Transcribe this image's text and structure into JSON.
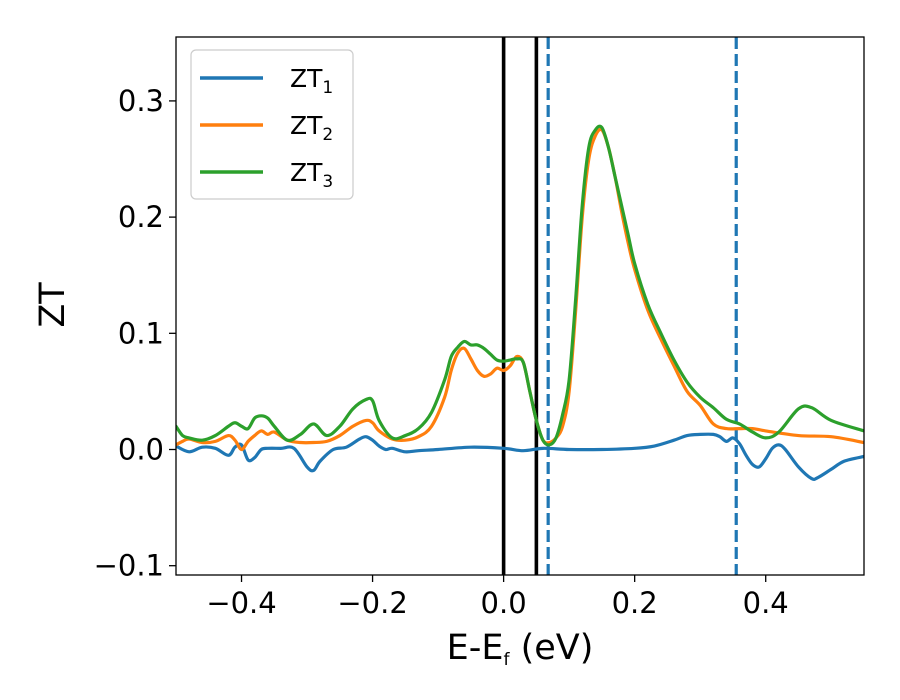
{
  "chart_data": {
    "type": "line",
    "xlabel": "E-E",
    "xlabel_sub": "f",
    "xlabel_unit": " (eV)",
    "ylabel": "ZT",
    "xlim": [
      -0.5,
      0.55
    ],
    "ylim": [
      -0.108,
      0.355
    ],
    "xticks": [
      -0.4,
      -0.2,
      0.0,
      0.2,
      0.4
    ],
    "xtick_labels": [
      "−0.4",
      "−0.2",
      "0.0",
      "0.2",
      "0.4"
    ],
    "yticks": [
      -0.1,
      0.0,
      0.1,
      0.2,
      0.3
    ],
    "ytick_labels": [
      "−0.1",
      "0.0",
      "0.1",
      "0.2",
      "0.3"
    ],
    "grid": false,
    "legend_position": "top-left",
    "vertical_lines": [
      {
        "x": 0.0,
        "color": "#000000",
        "style": "solid"
      },
      {
        "x": 0.05,
        "color": "#000000",
        "style": "solid"
      },
      {
        "x": 0.068,
        "color": "#1f77b4",
        "style": "dashed"
      },
      {
        "x": 0.355,
        "color": "#1f77b4",
        "style": "dashed"
      }
    ],
    "series": [
      {
        "name": "ZT",
        "name_sub": "1",
        "color": "#1f77b4",
        "x": [
          -0.5,
          -0.48,
          -0.46,
          -0.44,
          -0.42,
          -0.41,
          -0.4,
          -0.39,
          -0.38,
          -0.37,
          -0.36,
          -0.34,
          -0.32,
          -0.3,
          -0.29,
          -0.28,
          -0.26,
          -0.24,
          -0.22,
          -0.21,
          -0.2,
          -0.19,
          -0.18,
          -0.17,
          -0.15,
          -0.13,
          -0.1,
          -0.05,
          0.0,
          0.03,
          0.06,
          0.1,
          0.15,
          0.2,
          0.23,
          0.26,
          0.28,
          0.3,
          0.32,
          0.33,
          0.34,
          0.35,
          0.36,
          0.37,
          0.38,
          0.39,
          0.4,
          0.41,
          0.42,
          0.43,
          0.45,
          0.47,
          0.48,
          0.5,
          0.52,
          0.55
        ],
        "y": [
          0.003,
          -0.002,
          0.002,
          0.001,
          -0.005,
          0.002,
          0.004,
          -0.009,
          -0.007,
          0.0,
          0.001,
          0.001,
          0.001,
          -0.015,
          -0.018,
          -0.01,
          0.0,
          0.002,
          0.009,
          0.011,
          0.008,
          0.003,
          0.0,
          0.001,
          -0.002,
          -0.001,
          0.0,
          0.002,
          0.001,
          -0.001,
          0.001,
          0.0,
          0.0,
          0.001,
          0.003,
          0.008,
          0.012,
          0.013,
          0.013,
          0.011,
          0.007,
          0.01,
          0.005,
          -0.005,
          -0.013,
          -0.015,
          -0.008,
          0.001,
          0.004,
          0.0,
          -0.015,
          -0.025,
          -0.024,
          -0.017,
          -0.01,
          -0.006
        ]
      },
      {
        "name": "ZT",
        "name_sub": "2",
        "color": "#ff7f0e",
        "x": [
          -0.5,
          -0.49,
          -0.48,
          -0.46,
          -0.44,
          -0.42,
          -0.41,
          -0.4,
          -0.39,
          -0.38,
          -0.37,
          -0.36,
          -0.35,
          -0.33,
          -0.31,
          -0.29,
          -0.27,
          -0.25,
          -0.23,
          -0.21,
          -0.2,
          -0.19,
          -0.17,
          -0.15,
          -0.13,
          -0.11,
          -0.09,
          -0.08,
          -0.07,
          -0.06,
          -0.05,
          -0.04,
          -0.03,
          -0.02,
          -0.01,
          0.0,
          0.01,
          0.02,
          0.03,
          0.04,
          0.05,
          0.06,
          0.07,
          0.08,
          0.09,
          0.1,
          0.11,
          0.12,
          0.13,
          0.14,
          0.15,
          0.16,
          0.17,
          0.18,
          0.19,
          0.2,
          0.22,
          0.24,
          0.26,
          0.28,
          0.3,
          0.32,
          0.34,
          0.36,
          0.38,
          0.4,
          0.45,
          0.5,
          0.55
        ],
        "y": [
          0.004,
          0.007,
          0.009,
          0.006,
          0.007,
          0.012,
          0.008,
          0.0,
          0.007,
          0.012,
          0.016,
          0.013,
          0.015,
          0.008,
          0.006,
          0.006,
          0.007,
          0.012,
          0.02,
          0.025,
          0.023,
          0.016,
          0.009,
          0.008,
          0.011,
          0.02,
          0.045,
          0.068,
          0.083,
          0.087,
          0.078,
          0.068,
          0.063,
          0.065,
          0.07,
          0.068,
          0.072,
          0.08,
          0.075,
          0.05,
          0.025,
          0.008,
          0.006,
          0.01,
          0.02,
          0.05,
          0.12,
          0.2,
          0.25,
          0.27,
          0.275,
          0.26,
          0.235,
          0.205,
          0.178,
          0.155,
          0.12,
          0.095,
          0.072,
          0.05,
          0.038,
          0.022,
          0.018,
          0.018,
          0.018,
          0.016,
          0.012,
          0.011,
          0.006
        ]
      },
      {
        "name": "ZT",
        "name_sub": "3",
        "color": "#2ca02c",
        "x": [
          -0.5,
          -0.49,
          -0.48,
          -0.46,
          -0.44,
          -0.42,
          -0.41,
          -0.4,
          -0.39,
          -0.38,
          -0.37,
          -0.36,
          -0.35,
          -0.33,
          -0.31,
          -0.29,
          -0.27,
          -0.25,
          -0.23,
          -0.21,
          -0.2,
          -0.19,
          -0.17,
          -0.15,
          -0.13,
          -0.11,
          -0.09,
          -0.08,
          -0.07,
          -0.06,
          -0.05,
          -0.04,
          -0.03,
          -0.02,
          -0.01,
          0.0,
          0.01,
          0.02,
          0.03,
          0.04,
          0.05,
          0.06,
          0.07,
          0.08,
          0.09,
          0.1,
          0.11,
          0.12,
          0.13,
          0.14,
          0.15,
          0.16,
          0.17,
          0.18,
          0.19,
          0.2,
          0.22,
          0.24,
          0.26,
          0.28,
          0.3,
          0.32,
          0.34,
          0.36,
          0.38,
          0.4,
          0.42,
          0.45,
          0.47,
          0.5,
          0.55
        ],
        "y": [
          0.02,
          0.012,
          0.01,
          0.008,
          0.012,
          0.02,
          0.023,
          0.02,
          0.018,
          0.027,
          0.029,
          0.027,
          0.02,
          0.008,
          0.013,
          0.022,
          0.012,
          0.02,
          0.035,
          0.043,
          0.042,
          0.025,
          0.01,
          0.012,
          0.018,
          0.032,
          0.06,
          0.08,
          0.088,
          0.093,
          0.09,
          0.09,
          0.087,
          0.082,
          0.077,
          0.076,
          0.077,
          0.078,
          0.075,
          0.05,
          0.025,
          0.008,
          0.004,
          0.01,
          0.03,
          0.06,
          0.13,
          0.21,
          0.26,
          0.275,
          0.277,
          0.26,
          0.235,
          0.21,
          0.185,
          0.16,
          0.125,
          0.1,
          0.077,
          0.058,
          0.045,
          0.036,
          0.026,
          0.022,
          0.015,
          0.01,
          0.015,
          0.035,
          0.036,
          0.025,
          0.016
        ]
      }
    ]
  }
}
